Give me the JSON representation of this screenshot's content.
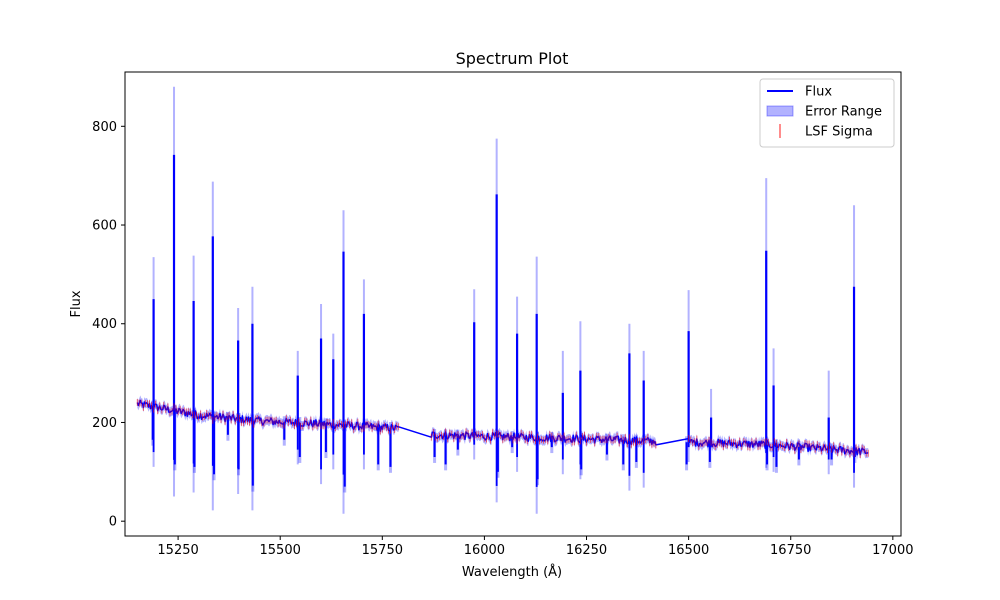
{
  "chart_data": {
    "type": "line",
    "title": "Spectrum Plot",
    "xlabel": "Wavelength (Å)",
    "ylabel": "Flux",
    "xlim": [
      15120,
      17020
    ],
    "ylim": [
      -30,
      910
    ],
    "x_ticks": [
      15250,
      15500,
      15750,
      16000,
      16250,
      16500,
      16750,
      17000
    ],
    "y_ticks": [
      0,
      200,
      400,
      600,
      800
    ],
    "x_tick_labels": [
      "15250",
      "15500",
      "15750",
      "16000",
      "16250",
      "16500",
      "16750",
      "17000"
    ],
    "y_tick_labels": [
      "0",
      "200",
      "400",
      "600",
      "800"
    ],
    "grid": false,
    "legend_position": "upper right",
    "legend": [
      {
        "label": "Flux",
        "kind": "line",
        "color": "#0000ff"
      },
      {
        "label": "Error Range",
        "kind": "patch",
        "color": "#0000ff"
      },
      {
        "label": "LSF Sigma",
        "kind": "errorbar",
        "color": "#ff0000"
      }
    ],
    "continuum_segments": [
      {
        "x": [
          15150,
          15300,
          15450,
          15600,
          15790
        ],
        "y": [
          238,
          215,
          203,
          197,
          188
        ]
      },
      {
        "x": [
          15870,
          16000,
          16200,
          16420
        ],
        "y": [
          175,
          172,
          168,
          162
        ]
      },
      {
        "x": [
          16500,
          16700,
          16940
        ],
        "y": [
          160,
          155,
          140
        ]
      }
    ],
    "emission_spikes": [
      {
        "x": 15190,
        "flux": 450,
        "err_top": 535,
        "err_bottom": 110
      },
      {
        "x": 15240,
        "flux": 742,
        "err_top": 880,
        "err_bottom": 50
      },
      {
        "x": 15288,
        "flux": 446,
        "err_top": 538,
        "err_bottom": 58
      },
      {
        "x": 15335,
        "flux": 577,
        "err_top": 688,
        "err_bottom": 22
      },
      {
        "x": 15397,
        "flux": 366,
        "err_top": 432,
        "err_bottom": 55
      },
      {
        "x": 15432,
        "flux": 400,
        "err_top": 475,
        "err_bottom": 22
      },
      {
        "x": 15543,
        "flux": 295,
        "err_top": 345,
        "err_bottom": 115
      },
      {
        "x": 15600,
        "flux": 370,
        "err_top": 440,
        "err_bottom": 75
      },
      {
        "x": 15630,
        "flux": 328,
        "err_top": 380,
        "err_bottom": 105
      },
      {
        "x": 15655,
        "flux": 546,
        "err_top": 630,
        "err_bottom": 15
      },
      {
        "x": 15705,
        "flux": 420,
        "err_top": 490,
        "err_bottom": 105
      },
      {
        "x": 15975,
        "flux": 403,
        "err_top": 470,
        "err_bottom": 125
      },
      {
        "x": 16030,
        "flux": 662,
        "err_top": 775,
        "err_bottom": 38
      },
      {
        "x": 16080,
        "flux": 380,
        "err_top": 455,
        "err_bottom": 100
      },
      {
        "x": 16128,
        "flux": 420,
        "err_top": 536,
        "err_bottom": 15
      },
      {
        "x": 16192,
        "flux": 260,
        "err_top": 345,
        "err_bottom": 95
      },
      {
        "x": 16235,
        "flux": 305,
        "err_top": 405,
        "err_bottom": 85
      },
      {
        "x": 16355,
        "flux": 340,
        "err_top": 400,
        "err_bottom": 62
      },
      {
        "x": 16390,
        "flux": 285,
        "err_top": 345,
        "err_bottom": 68
      },
      {
        "x": 16500,
        "flux": 385,
        "err_top": 468,
        "err_bottom": 120
      },
      {
        "x": 16555,
        "flux": 210,
        "err_top": 268,
        "err_bottom": 150
      },
      {
        "x": 16690,
        "flux": 548,
        "err_top": 695,
        "err_bottom": 108
      },
      {
        "x": 16708,
        "flux": 275,
        "err_top": 350,
        "err_bottom": 100
      },
      {
        "x": 16843,
        "flux": 210,
        "err_top": 305,
        "err_bottom": 95
      },
      {
        "x": 16905,
        "flux": 475,
        "err_top": 640,
        "err_bottom": 68
      }
    ],
    "absorption_dips": [
      {
        "x": 15188,
        "flux": 165
      },
      {
        "x": 15242,
        "flux": 115
      },
      {
        "x": 15290,
        "flux": 110
      },
      {
        "x": 15338,
        "flux": 95
      },
      {
        "x": 15372,
        "flux": 175
      },
      {
        "x": 15398,
        "flux": 105
      },
      {
        "x": 15433,
        "flux": 72
      },
      {
        "x": 15510,
        "flux": 165
      },
      {
        "x": 15548,
        "flux": 130
      },
      {
        "x": 15612,
        "flux": 140
      },
      {
        "x": 15658,
        "flux": 70
      },
      {
        "x": 15740,
        "flux": 115
      },
      {
        "x": 15770,
        "flux": 110
      },
      {
        "x": 15878,
        "flux": 130
      },
      {
        "x": 15905,
        "flux": 115
      },
      {
        "x": 15935,
        "flux": 145
      },
      {
        "x": 16033,
        "flux": 100
      },
      {
        "x": 16068,
        "flux": 150
      },
      {
        "x": 16130,
        "flux": 85
      },
      {
        "x": 16165,
        "flux": 150
      },
      {
        "x": 16237,
        "flux": 105
      },
      {
        "x": 16300,
        "flux": 135
      },
      {
        "x": 16340,
        "flux": 115
      },
      {
        "x": 16372,
        "flux": 120
      },
      {
        "x": 16495,
        "flux": 115
      },
      {
        "x": 16552,
        "flux": 120
      },
      {
        "x": 16692,
        "flux": 115
      },
      {
        "x": 16715,
        "flux": 110
      },
      {
        "x": 16770,
        "flux": 125
      },
      {
        "x": 16850,
        "flux": 125
      },
      {
        "x": 16907,
        "flux": 130
      }
    ],
    "error_band_halfwidth": 10,
    "colors": {
      "flux": "#0000ff",
      "error": "#0000ff",
      "lsf": "#ff0000"
    }
  }
}
